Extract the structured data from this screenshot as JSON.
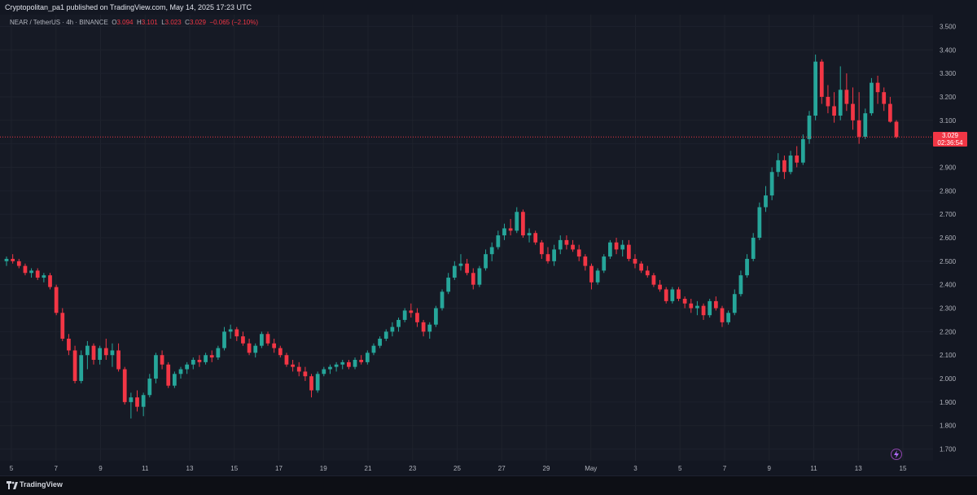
{
  "header": {
    "publish_line": "Cryptopolitan_pa1 published on TradingView.com, May 14, 2025 17:23 UTC"
  },
  "legend": {
    "symbol_line": "NEAR / TetherUS · 4h · BINANCE",
    "open_label": "O",
    "open": "3.094",
    "high_label": "H",
    "high": "3.101",
    "low_label": "L",
    "low": "3.023",
    "close_label": "C",
    "close": "3.029",
    "change": "−0.065 (−2.10%)"
  },
  "price_tag": {
    "price": "3.029",
    "countdown": "02:36:54"
  },
  "footer": {
    "brand": "TradingView",
    "logo_icon": "tradingview-logo-icon"
  },
  "colors": {
    "up": "#26a69a",
    "down": "#f23645",
    "background": "#161a25",
    "grid": "#1e222d"
  },
  "chart_data": {
    "type": "candlestick",
    "symbol": "NEAR / TetherUS",
    "interval": "4h",
    "exchange": "BINANCE",
    "ylim": [
      1.65,
      3.55
    ],
    "y_ticks": [
      "3.500",
      "3.400",
      "3.300",
      "3.200",
      "3.100",
      "3.000",
      "2.900",
      "2.800",
      "2.700",
      "2.600",
      "2.500",
      "2.400",
      "2.300",
      "2.200",
      "2.100",
      "2.000",
      "1.900",
      "1.800",
      "1.700"
    ],
    "x_ticks": [
      "5",
      "7",
      "9",
      "11",
      "13",
      "15",
      "17",
      "19",
      "21",
      "23",
      "25",
      "27",
      "29",
      "May",
      "3",
      "5",
      "7",
      "9",
      "11",
      "13",
      "15"
    ],
    "last_price": 3.029,
    "grid": true,
    "ohlc": [
      [
        2.5,
        2.52,
        2.48,
        2.51
      ],
      [
        2.51,
        2.53,
        2.49,
        2.5
      ],
      [
        2.5,
        2.51,
        2.47,
        2.48
      ],
      [
        2.48,
        2.49,
        2.44,
        2.45
      ],
      [
        2.45,
        2.47,
        2.43,
        2.46
      ],
      [
        2.46,
        2.47,
        2.42,
        2.43
      ],
      [
        2.43,
        2.45,
        2.41,
        2.44
      ],
      [
        2.44,
        2.45,
        2.38,
        2.39
      ],
      [
        2.39,
        2.4,
        2.27,
        2.28
      ],
      [
        2.28,
        2.3,
        2.16,
        2.17
      ],
      [
        2.17,
        2.19,
        2.1,
        2.12
      ],
      [
        2.12,
        2.14,
        1.98,
        1.99
      ],
      [
        1.99,
        2.12,
        1.98,
        2.1
      ],
      [
        2.1,
        2.16,
        2.04,
        2.14
      ],
      [
        2.14,
        2.15,
        2.06,
        2.08
      ],
      [
        2.08,
        2.14,
        2.06,
        2.13
      ],
      [
        2.13,
        2.17,
        2.08,
        2.1
      ],
      [
        2.1,
        2.15,
        2.05,
        2.12
      ],
      [
        2.12,
        2.15,
        2.03,
        2.04
      ],
      [
        2.04,
        2.05,
        1.89,
        1.9
      ],
      [
        1.9,
        1.94,
        1.83,
        1.92
      ],
      [
        1.92,
        1.95,
        1.86,
        1.88
      ],
      [
        1.88,
        1.94,
        1.84,
        1.93
      ],
      [
        1.93,
        2.02,
        1.92,
        2.0
      ],
      [
        2.0,
        2.11,
        1.98,
        2.1
      ],
      [
        2.1,
        2.12,
        2.04,
        2.06
      ],
      [
        2.06,
        2.07,
        1.96,
        1.97
      ],
      [
        1.97,
        2.03,
        1.96,
        2.02
      ],
      [
        2.02,
        2.05,
        2.0,
        2.04
      ],
      [
        2.04,
        2.07,
        2.02,
        2.06
      ],
      [
        2.06,
        2.09,
        2.04,
        2.08
      ],
      [
        2.08,
        2.1,
        2.05,
        2.07
      ],
      [
        2.07,
        2.11,
        2.06,
        2.1
      ],
      [
        2.1,
        2.12,
        2.07,
        2.09
      ],
      [
        2.09,
        2.14,
        2.08,
        2.13
      ],
      [
        2.13,
        2.22,
        2.12,
        2.2
      ],
      [
        2.2,
        2.23,
        2.17,
        2.21
      ],
      [
        2.21,
        2.22,
        2.16,
        2.18
      ],
      [
        2.18,
        2.2,
        2.14,
        2.15
      ],
      [
        2.15,
        2.17,
        2.1,
        2.11
      ],
      [
        2.11,
        2.15,
        2.09,
        2.14
      ],
      [
        2.14,
        2.2,
        2.13,
        2.19
      ],
      [
        2.19,
        2.2,
        2.14,
        2.15
      ],
      [
        2.15,
        2.17,
        2.11,
        2.13
      ],
      [
        2.13,
        2.14,
        2.09,
        2.1
      ],
      [
        2.1,
        2.11,
        2.05,
        2.06
      ],
      [
        2.06,
        2.08,
        2.03,
        2.05
      ],
      [
        2.05,
        2.07,
        2.01,
        2.03
      ],
      [
        2.03,
        2.05,
        1.99,
        2.01
      ],
      [
        2.01,
        2.02,
        1.92,
        1.95
      ],
      [
        1.95,
        2.03,
        1.94,
        2.02
      ],
      [
        2.02,
        2.05,
        2.01,
        2.04
      ],
      [
        2.04,
        2.06,
        2.02,
        2.05
      ],
      [
        2.05,
        2.07,
        2.03,
        2.06
      ],
      [
        2.06,
        2.08,
        2.04,
        2.07
      ],
      [
        2.07,
        2.08,
        2.04,
        2.05
      ],
      [
        2.05,
        2.09,
        2.04,
        2.08
      ],
      [
        2.08,
        2.1,
        2.06,
        2.07
      ],
      [
        2.07,
        2.12,
        2.06,
        2.11
      ],
      [
        2.11,
        2.15,
        2.1,
        2.14
      ],
      [
        2.14,
        2.18,
        2.13,
        2.17
      ],
      [
        2.17,
        2.21,
        2.16,
        2.2
      ],
      [
        2.2,
        2.24,
        2.18,
        2.22
      ],
      [
        2.22,
        2.26,
        2.2,
        2.25
      ],
      [
        2.25,
        2.3,
        2.24,
        2.29
      ],
      [
        2.29,
        2.32,
        2.26,
        2.28
      ],
      [
        2.28,
        2.3,
        2.22,
        2.24
      ],
      [
        2.24,
        2.25,
        2.18,
        2.2
      ],
      [
        2.2,
        2.24,
        2.17,
        2.23
      ],
      [
        2.23,
        2.31,
        2.22,
        2.3
      ],
      [
        2.3,
        2.38,
        2.29,
        2.37
      ],
      [
        2.37,
        2.45,
        2.36,
        2.43
      ],
      [
        2.43,
        2.5,
        2.42,
        2.48
      ],
      [
        2.48,
        2.53,
        2.46,
        2.49
      ],
      [
        2.49,
        2.51,
        2.44,
        2.45
      ],
      [
        2.45,
        2.47,
        2.38,
        2.4
      ],
      [
        2.4,
        2.48,
        2.39,
        2.47
      ],
      [
        2.47,
        2.55,
        2.46,
        2.53
      ],
      [
        2.53,
        2.58,
        2.5,
        2.56
      ],
      [
        2.56,
        2.63,
        2.55,
        2.61
      ],
      [
        2.61,
        2.66,
        2.59,
        2.64
      ],
      [
        2.64,
        2.68,
        2.61,
        2.63
      ],
      [
        2.63,
        2.73,
        2.62,
        2.71
      ],
      [
        2.71,
        2.72,
        2.6,
        2.61
      ],
      [
        2.61,
        2.64,
        2.58,
        2.62
      ],
      [
        2.62,
        2.63,
        2.57,
        2.58
      ],
      [
        2.58,
        2.59,
        2.51,
        2.53
      ],
      [
        2.53,
        2.56,
        2.49,
        2.5
      ],
      [
        2.5,
        2.57,
        2.48,
        2.55
      ],
      [
        2.55,
        2.61,
        2.53,
        2.59
      ],
      [
        2.59,
        2.61,
        2.55,
        2.57
      ],
      [
        2.57,
        2.59,
        2.54,
        2.55
      ],
      [
        2.55,
        2.57,
        2.5,
        2.52
      ],
      [
        2.52,
        2.53,
        2.46,
        2.48
      ],
      [
        2.48,
        2.49,
        2.38,
        2.41
      ],
      [
        2.41,
        2.47,
        2.4,
        2.46
      ],
      [
        2.46,
        2.53,
        2.45,
        2.52
      ],
      [
        2.52,
        2.59,
        2.51,
        2.58
      ],
      [
        2.58,
        2.6,
        2.53,
        2.55
      ],
      [
        2.55,
        2.59,
        2.52,
        2.57
      ],
      [
        2.57,
        2.59,
        2.5,
        2.51
      ],
      [
        2.51,
        2.53,
        2.47,
        2.49
      ],
      [
        2.49,
        2.5,
        2.45,
        2.46
      ],
      [
        2.46,
        2.48,
        2.43,
        2.44
      ],
      [
        2.44,
        2.45,
        2.39,
        2.4
      ],
      [
        2.4,
        2.42,
        2.37,
        2.38
      ],
      [
        2.38,
        2.39,
        2.32,
        2.33
      ],
      [
        2.33,
        2.39,
        2.32,
        2.38
      ],
      [
        2.38,
        2.39,
        2.33,
        2.34
      ],
      [
        2.34,
        2.35,
        2.3,
        2.32
      ],
      [
        2.32,
        2.34,
        2.28,
        2.3
      ],
      [
        2.3,
        2.33,
        2.27,
        2.31
      ],
      [
        2.31,
        2.32,
        2.25,
        2.27
      ],
      [
        2.27,
        2.34,
        2.26,
        2.33
      ],
      [
        2.33,
        2.35,
        2.29,
        2.3
      ],
      [
        2.3,
        2.31,
        2.22,
        2.24
      ],
      [
        2.24,
        2.29,
        2.23,
        2.28
      ],
      [
        2.28,
        2.38,
        2.27,
        2.36
      ],
      [
        2.36,
        2.46,
        2.35,
        2.44
      ],
      [
        2.44,
        2.53,
        2.43,
        2.51
      ],
      [
        2.51,
        2.62,
        2.5,
        2.6
      ],
      [
        2.6,
        2.75,
        2.59,
        2.73
      ],
      [
        2.73,
        2.82,
        2.71,
        2.78
      ],
      [
        2.78,
        2.9,
        2.76,
        2.88
      ],
      [
        2.88,
        2.96,
        2.86,
        2.93
      ],
      [
        2.93,
        2.95,
        2.85,
        2.88
      ],
      [
        2.88,
        2.97,
        2.87,
        2.95
      ],
      [
        2.95,
        2.99,
        2.9,
        2.92
      ],
      [
        2.92,
        3.04,
        2.91,
        3.02
      ],
      [
        3.02,
        3.14,
        3.0,
        3.12
      ],
      [
        3.12,
        3.38,
        3.1,
        3.35
      ],
      [
        3.35,
        3.36,
        3.17,
        3.2
      ],
      [
        3.2,
        3.25,
        3.13,
        3.16
      ],
      [
        3.16,
        3.22,
        3.09,
        3.12
      ],
      [
        3.12,
        3.33,
        3.1,
        3.23
      ],
      [
        3.23,
        3.3,
        3.14,
        3.17
      ],
      [
        3.17,
        3.24,
        3.06,
        3.1
      ],
      [
        3.1,
        3.22,
        3.0,
        3.03
      ],
      [
        3.03,
        3.15,
        3.02,
        3.13
      ],
      [
        3.13,
        3.28,
        3.12,
        3.26
      ],
      [
        3.26,
        3.29,
        3.17,
        3.22
      ],
      [
        3.22,
        3.24,
        3.14,
        3.17
      ],
      [
        3.17,
        3.2,
        3.09,
        3.094
      ],
      [
        3.094,
        3.101,
        3.023,
        3.029
      ]
    ]
  }
}
